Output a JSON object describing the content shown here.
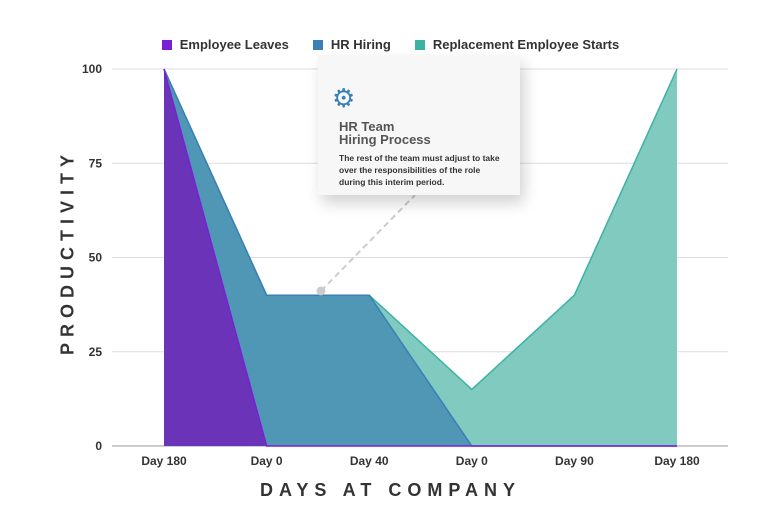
{
  "chart_data": {
    "type": "area",
    "xlabel": "DAYS AT COMPANY",
    "ylabel": "PRODUCTIVITY",
    "categories": [
      "Day 180",
      "Day 0",
      "Day 40",
      "Day 0",
      "Day 90",
      "Day 180"
    ],
    "ylim": [
      0,
      100
    ],
    "yticks": [
      0,
      25,
      50,
      75,
      100
    ],
    "grid": true,
    "legend_position": "top",
    "series": [
      {
        "name": "Employee Leaves",
        "values": [
          100,
          0,
          0,
          0,
          0,
          0
        ],
        "color": "#6a33b8",
        "line_color": "#7b1fd6"
      },
      {
        "name": "HR Hiring",
        "values": [
          100,
          40,
          40,
          0,
          0,
          0
        ],
        "color": "#4f97b5",
        "line_color": "#3a7fb5"
      },
      {
        "name": "Replacement Employee Starts",
        "values": [
          100,
          40,
          40,
          15,
          40,
          100
        ],
        "color": "#80cac0",
        "line_color": "#3bb3a3"
      }
    ],
    "annotation": {
      "icon": "gear-icon",
      "title_line1": "HR Team",
      "title_line2": "Hiring Process",
      "text": "The rest of the team must adjust to take over the responsibilities of the role during this interim period."
    }
  }
}
